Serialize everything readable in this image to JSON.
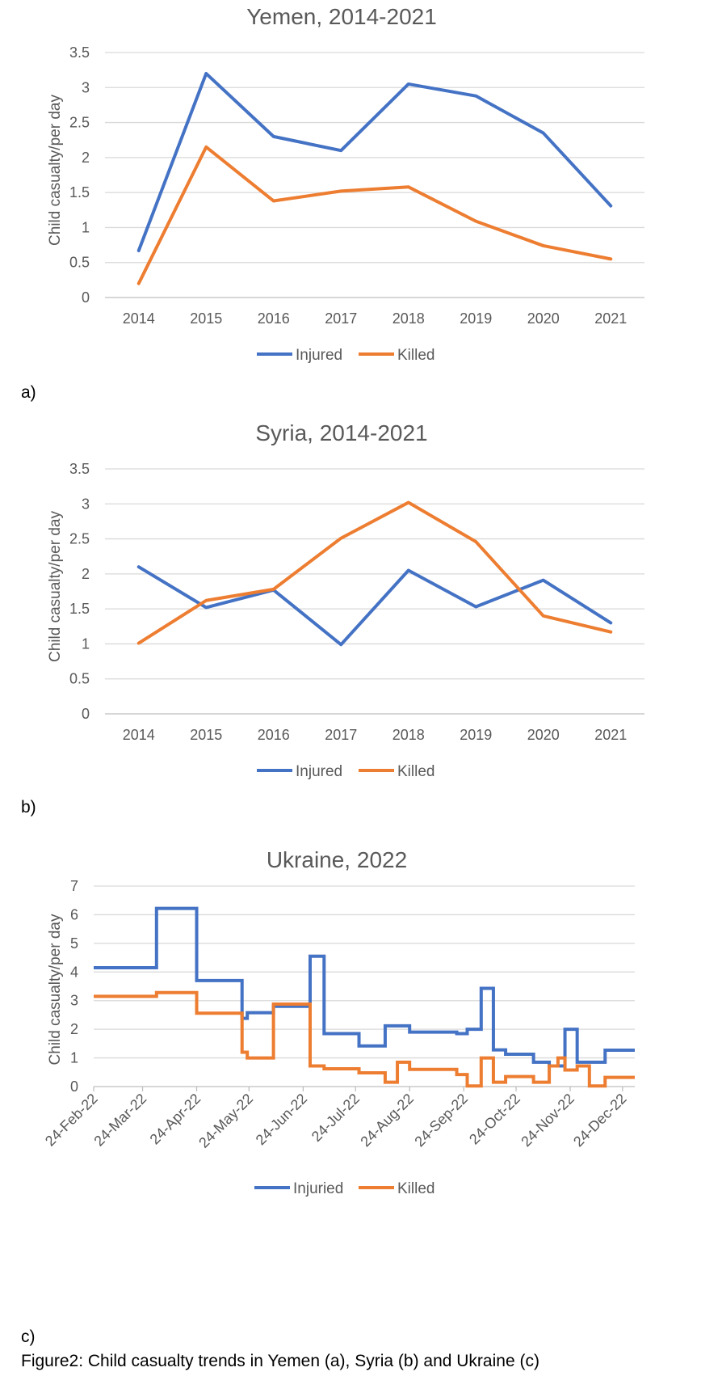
{
  "chart_data": [
    {
      "type": "line",
      "title": "Yemen, 2014-2021",
      "xlabel": "",
      "ylabel": "Child casualty/per day",
      "categories": [
        "2014",
        "2015",
        "2016",
        "2017",
        "2018",
        "2019",
        "2020",
        "2021"
      ],
      "ylim": [
        0,
        3.5
      ],
      "yticks": [
        "0",
        "0.5",
        "1",
        "1.5",
        "2",
        "2.5",
        "3",
        "3.5"
      ],
      "grid": true,
      "legend": "bottom",
      "series": [
        {
          "name": "Injured",
          "color": "#4472C4",
          "values": [
            0.67,
            3.2,
            2.3,
            2.1,
            3.05,
            2.88,
            2.35,
            1.31
          ]
        },
        {
          "name": "Killed",
          "color": "#ED7D31",
          "values": [
            0.2,
            2.15,
            1.38,
            1.52,
            1.58,
            1.09,
            0.74,
            0.55
          ]
        }
      ]
    },
    {
      "type": "line",
      "title": "Syria, 2014-2021",
      "xlabel": "",
      "ylabel": "Child casualty/per day",
      "categories": [
        "2014",
        "2015",
        "2016",
        "2017",
        "2018",
        "2019",
        "2020",
        "2021"
      ],
      "ylim": [
        0,
        3.5
      ],
      "yticks": [
        "0",
        "0.5",
        "1",
        "1.5",
        "2",
        "2.5",
        "3",
        "3.5"
      ],
      "grid": true,
      "legend": "bottom",
      "series": [
        {
          "name": "Injured",
          "color": "#4472C4",
          "values": [
            2.1,
            1.52,
            1.77,
            0.99,
            2.05,
            1.53,
            1.91,
            1.3
          ]
        },
        {
          "name": "Killed",
          "color": "#ED7D31",
          "values": [
            1.01,
            1.62,
            1.78,
            2.51,
            3.02,
            2.46,
            1.4,
            1.17
          ]
        }
      ]
    },
    {
      "type": "line",
      "title": "Ukraine, 2022",
      "xlabel": "",
      "ylabel": "Child casualty/per day",
      "x_range": [
        "2022-02-24",
        "2022-12-31"
      ],
      "x_ticks": [
        {
          "label": "24-Feb-22",
          "date": "2022-02-24"
        },
        {
          "label": "24-Mar-22",
          "date": "2022-03-24"
        },
        {
          "label": "24-Apr-22",
          "date": "2022-04-24"
        },
        {
          "label": "24-May-22",
          "date": "2022-05-24"
        },
        {
          "label": "24-Jun-22",
          "date": "2022-06-24"
        },
        {
          "label": "24-Jul-22",
          "date": "2022-07-24"
        },
        {
          "label": "24-Aug-22",
          "date": "2022-08-24"
        },
        {
          "label": "24-Sep-22",
          "date": "2022-09-24"
        },
        {
          "label": "24-Oct-22",
          "date": "2022-10-24"
        },
        {
          "label": "24-Nov-22",
          "date": "2022-11-24"
        },
        {
          "label": "24-Dec-22",
          "date": "2022-12-24"
        }
      ],
      "ylim": [
        0,
        7
      ],
      "yticks": [
        "0",
        "1",
        "2",
        "3",
        "4",
        "5",
        "6",
        "7"
      ],
      "grid": true,
      "legend": "bottom",
      "series": [
        {
          "name": "Injuried",
          "color": "#4472C4",
          "step": true,
          "points": [
            [
              "2022-02-24",
              4.15
            ],
            [
              "2022-04-01",
              6.22
            ],
            [
              "2022-04-24",
              3.7
            ],
            [
              "2022-05-20",
              2.38
            ],
            [
              "2022-05-23",
              2.58
            ],
            [
              "2022-06-07",
              2.8
            ],
            [
              "2022-06-28",
              4.55
            ],
            [
              "2022-07-06",
              1.85
            ],
            [
              "2022-07-26",
              1.42
            ],
            [
              "2022-08-10",
              2.12
            ],
            [
              "2022-08-24",
              1.9
            ],
            [
              "2022-09-20",
              1.85
            ],
            [
              "2022-09-26",
              2.0
            ],
            [
              "2022-10-04",
              3.43
            ],
            [
              "2022-10-11",
              1.28
            ],
            [
              "2022-10-18",
              1.13
            ],
            [
              "2022-11-03",
              0.85
            ],
            [
              "2022-11-12",
              0.72
            ],
            [
              "2022-11-21",
              2.0
            ],
            [
              "2022-11-28",
              0.85
            ],
            [
              "2022-12-14",
              1.27
            ],
            [
              "2022-12-31",
              1.27
            ]
          ]
        },
        {
          "name": "Killed",
          "color": "#ED7D31",
          "step": true,
          "points": [
            [
              "2022-02-24",
              3.15
            ],
            [
              "2022-04-01",
              3.28
            ],
            [
              "2022-04-24",
              2.56
            ],
            [
              "2022-05-20",
              1.2
            ],
            [
              "2022-05-23",
              1.0
            ],
            [
              "2022-06-07",
              2.88
            ],
            [
              "2022-06-28",
              0.72
            ],
            [
              "2022-07-06",
              0.62
            ],
            [
              "2022-07-26",
              0.48
            ],
            [
              "2022-08-10",
              0.15
            ],
            [
              "2022-08-17",
              0.85
            ],
            [
              "2022-08-24",
              0.6
            ],
            [
              "2022-09-20",
              0.42
            ],
            [
              "2022-09-26",
              0.02
            ],
            [
              "2022-10-04",
              1.0
            ],
            [
              "2022-10-11",
              0.15
            ],
            [
              "2022-10-18",
              0.35
            ],
            [
              "2022-11-03",
              0.15
            ],
            [
              "2022-11-12",
              0.72
            ],
            [
              "2022-11-17",
              1.0
            ],
            [
              "2022-11-21",
              0.58
            ],
            [
              "2022-11-28",
              0.72
            ],
            [
              "2022-12-05",
              0.02
            ],
            [
              "2022-12-14",
              0.32
            ],
            [
              "2022-12-31",
              0.32
            ]
          ]
        }
      ]
    }
  ],
  "labels": {
    "a": "a)",
    "b": "b)",
    "c": "c)"
  },
  "caption": "Figure2: Child casualty trends in Yemen (a), Syria (b) and Ukraine (c)"
}
